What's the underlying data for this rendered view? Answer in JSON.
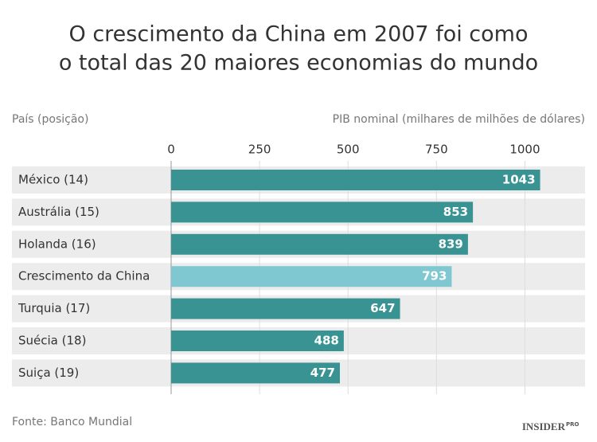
{
  "chart_data": {
    "type": "bar",
    "orientation": "horizontal",
    "title": [
      "O crescimento da China em 2007 foi como",
      "o total das 20 maiores economias do mundo"
    ],
    "category_header": "País (posição)",
    "value_header": "PIB nominal (milhares de milhões de dólares)",
    "categories": [
      "México (14)",
      "Austrália (15)",
      "Holanda (16)",
      "Crescimento da China",
      "Turquia (17)",
      "Suécia (18)",
      "Suiça (19)"
    ],
    "values": [
      1043,
      853,
      839,
      793,
      647,
      488,
      477
    ],
    "colors": [
      "#3a9393",
      "#3a9393",
      "#3a9393",
      "#7fc8d1",
      "#3a9393",
      "#3a9393",
      "#3a9393"
    ],
    "xlim": [
      0,
      1170
    ],
    "xticks": [
      0,
      250,
      500,
      750,
      1000
    ],
    "grid": true,
    "source": "Fonte: Banco Mundial",
    "brand": "INSIDER",
    "brand_suffix": "PRO"
  }
}
